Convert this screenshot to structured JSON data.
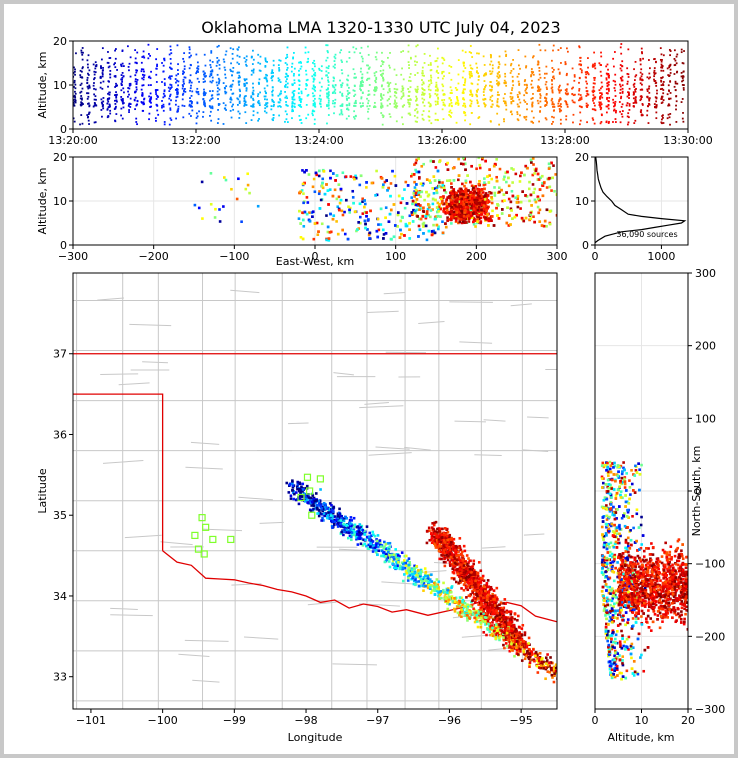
{
  "chart_data": [
    {
      "type": "scatter",
      "title": "Oklahoma LMA 1320-1330 UTC July 04, 2023",
      "ylabel": "Altitude, km",
      "xlabel": "",
      "ylim": [
        0,
        20
      ],
      "yticks": [
        "0",
        "10",
        "20"
      ],
      "xticks": [
        "13:20:00",
        "13:22:00",
        "13:24:00",
        "13:26:00",
        "13:28:00",
        "13:30:00"
      ],
      "color_by": "time",
      "colormap": [
        "#00007f",
        "#0000ff",
        "#007fff",
        "#00ffff",
        "#7fff7f",
        "#ffff00",
        "#ff7f00",
        "#ff0000",
        "#7f0000"
      ]
    },
    {
      "type": "scatter",
      "xlabel": "East-West, km",
      "ylabel": "Altitude, km",
      "xlim": [
        -300,
        300
      ],
      "ylim": [
        0,
        20
      ],
      "xticks": [
        "−300",
        "−200",
        "−100",
        "0",
        "100",
        "200",
        "300"
      ],
      "yticks": [
        "0",
        "10",
        "20"
      ]
    },
    {
      "type": "line",
      "xlim": [
        0,
        1400
      ],
      "ylim": [
        0,
        20
      ],
      "xticks": [
        "0",
        "1000"
      ],
      "yticks": [
        "0",
        "10",
        "20"
      ],
      "annotation": "36,090 sources",
      "profile": [
        [
          0,
          0.5
        ],
        [
          40,
          1
        ],
        [
          150,
          2
        ],
        [
          400,
          3
        ],
        [
          700,
          3.5
        ],
        [
          900,
          4
        ],
        [
          1100,
          4.5
        ],
        [
          1300,
          5
        ],
        [
          1350,
          5.5
        ],
        [
          1000,
          6
        ],
        [
          700,
          6.5
        ],
        [
          500,
          7
        ],
        [
          400,
          8
        ],
        [
          300,
          9
        ],
        [
          250,
          10
        ],
        [
          180,
          11
        ],
        [
          120,
          12
        ],
        [
          90,
          13
        ],
        [
          70,
          14
        ],
        [
          50,
          15
        ],
        [
          40,
          16
        ],
        [
          30,
          17
        ],
        [
          25,
          18
        ],
        [
          20,
          19
        ],
        [
          10,
          20
        ]
      ]
    },
    {
      "type": "scatter",
      "xlabel": "Longitude",
      "ylabel": "Latitude",
      "xlim": [
        -101.25,
        -94.5
      ],
      "ylim": [
        32.6,
        38.0
      ],
      "xticks": [
        "−101",
        "−100",
        "−99",
        "−98",
        "−97",
        "−96",
        "−95"
      ],
      "yticks": [
        "33",
        "34",
        "35",
        "36",
        "37"
      ],
      "station_markers": [
        [
          -99.45,
          34.97
        ],
        [
          -99.4,
          34.85
        ],
        [
          -99.55,
          34.75
        ],
        [
          -99.3,
          34.7
        ],
        [
          -99.05,
          34.7
        ],
        [
          -99.5,
          34.58
        ],
        [
          -99.42,
          34.52
        ],
        [
          -97.98,
          35.47
        ],
        [
          -97.8,
          35.45
        ],
        [
          -98.07,
          35.22
        ],
        [
          -97.95,
          35.3
        ],
        [
          -97.92,
          35.0
        ]
      ]
    },
    {
      "type": "scatter",
      "xlabel": "Altitude, km",
      "ylabel": "North-South, km",
      "xlim": [
        0,
        20
      ],
      "ylim": [
        -300,
        300
      ],
      "xticks": [
        "0",
        "10",
        "20"
      ],
      "yticks": [
        "−300",
        "−200",
        "−100",
        "0",
        "100",
        "200",
        "300"
      ]
    }
  ]
}
